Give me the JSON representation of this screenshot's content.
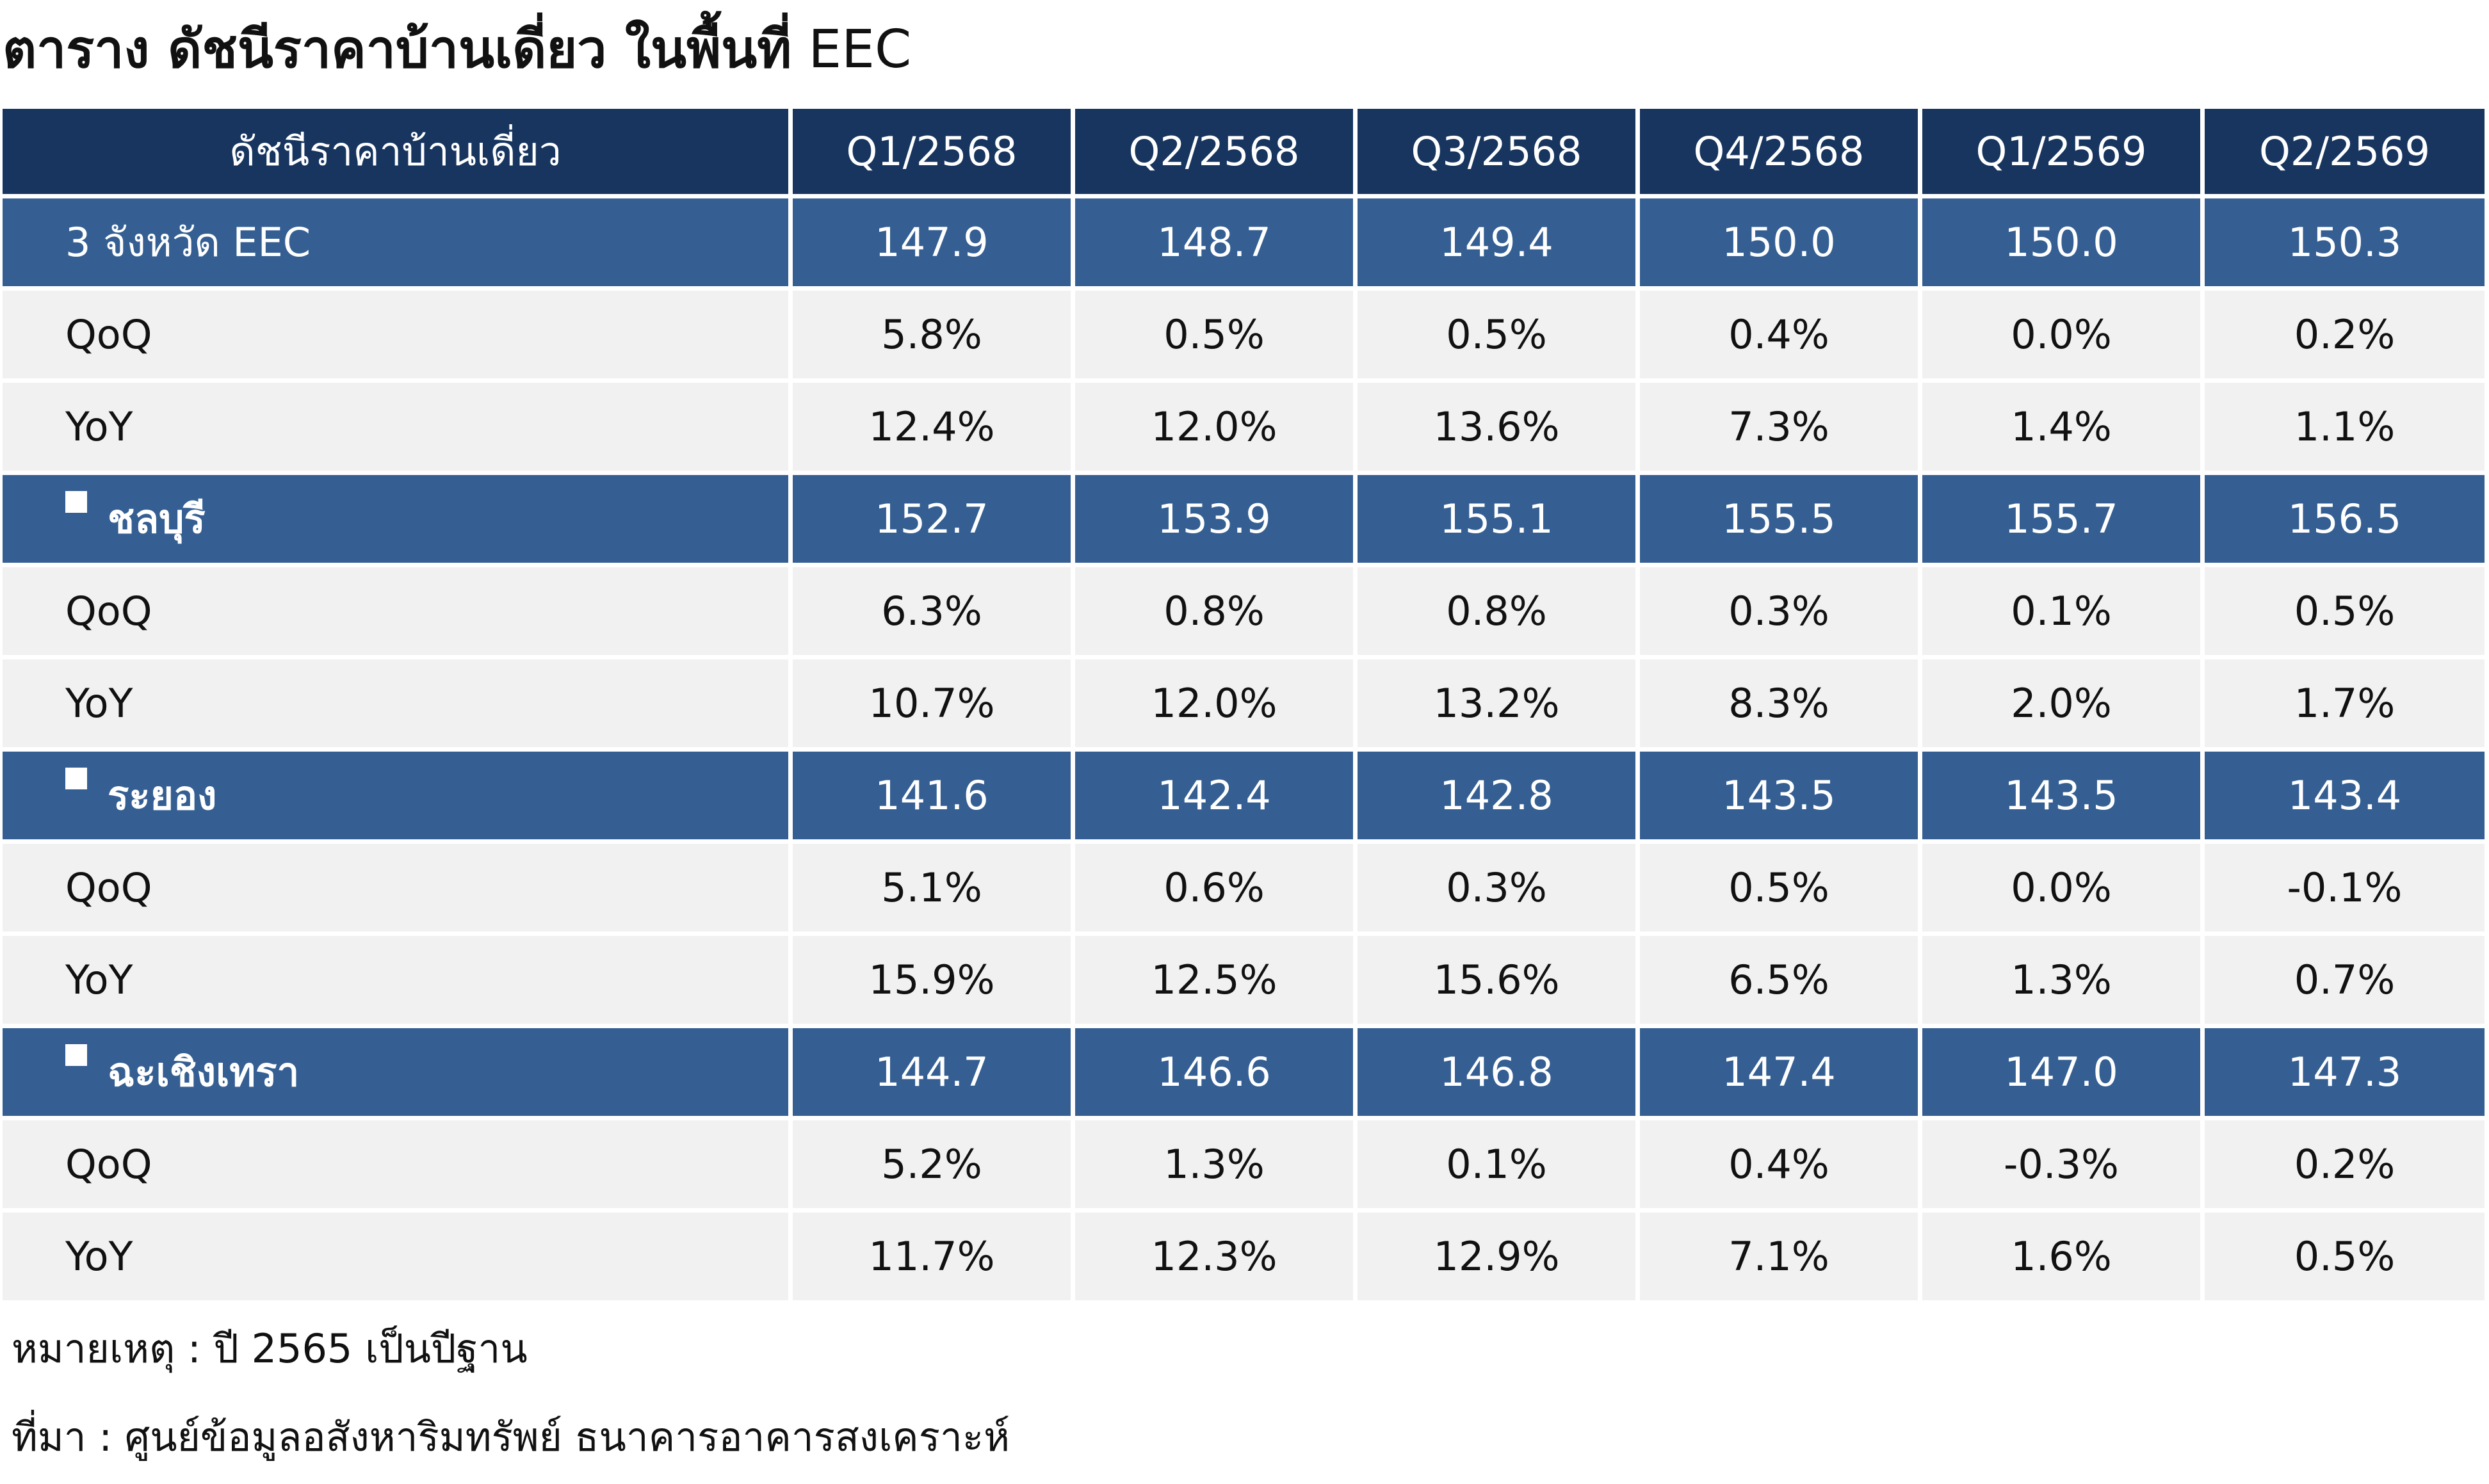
{
  "title": {
    "thai": "ตาราง ดัชนีราคาบ้านเดี่ยว ในพื้นที่",
    "latin": "EEC"
  },
  "table": {
    "header": [
      "ดัชนีราคาบ้านเดี่ยว",
      "Q1/2568",
      "Q2/2568",
      "Q3/2568",
      "Q4/2568",
      "Q1/2569",
      "Q2/2569"
    ],
    "groups": [
      {
        "name": "3 จังหวัด EEC",
        "bullet": false,
        "values": [
          "147.9",
          "148.7",
          "149.4",
          "150.0",
          "150.0",
          "150.3"
        ],
        "rows": [
          {
            "label": "QoQ",
            "values": [
              "5.8%",
              "0.5%",
              "0.5%",
              "0.4%",
              "0.0%",
              "0.2%"
            ]
          },
          {
            "label": "YoY",
            "values": [
              "12.4%",
              "12.0%",
              "13.6%",
              "7.3%",
              "1.4%",
              "1.1%"
            ]
          }
        ]
      },
      {
        "name": "ชลบุรี",
        "bullet": true,
        "values": [
          "152.7",
          "153.9",
          "155.1",
          "155.5",
          "155.7",
          "156.5"
        ],
        "rows": [
          {
            "label": "QoQ",
            "values": [
              "6.3%",
              "0.8%",
              "0.8%",
              "0.3%",
              "0.1%",
              "0.5%"
            ]
          },
          {
            "label": "YoY",
            "values": [
              "10.7%",
              "12.0%",
              "13.2%",
              "8.3%",
              "2.0%",
              "1.7%"
            ]
          }
        ]
      },
      {
        "name": "ระยอง",
        "bullet": true,
        "values": [
          "141.6",
          "142.4",
          "142.8",
          "143.5",
          "143.5",
          "143.4"
        ],
        "rows": [
          {
            "label": "QoQ",
            "values": [
              "5.1%",
              "0.6%",
              "0.3%",
              "0.5%",
              "0.0%",
              "-0.1%"
            ]
          },
          {
            "label": "YoY",
            "values": [
              "15.9%",
              "12.5%",
              "15.6%",
              "6.5%",
              "1.3%",
              "0.7%"
            ]
          }
        ]
      },
      {
        "name": "ฉะเชิงเทรา",
        "bullet": true,
        "values": [
          "144.7",
          "146.6",
          "146.8",
          "147.4",
          "147.0",
          "147.3"
        ],
        "rows": [
          {
            "label": "QoQ",
            "values": [
              "5.2%",
              "1.3%",
              "0.1%",
              "0.4%",
              "-0.3%",
              "0.2%"
            ]
          },
          {
            "label": "YoY",
            "values": [
              "11.7%",
              "12.3%",
              "12.9%",
              "7.1%",
              "1.6%",
              "0.5%"
            ]
          }
        ]
      }
    ]
  },
  "notes": {
    "remark": "หมายเหตุ : ปี 2565 เป็นปีฐาน",
    "source": "ที่มา : ศูนย์ข้อมูลอสังหาริมทรัพย์ ธนาคารอาคารสงเคราะห์"
  },
  "colors": {
    "header_bg": "#17355f",
    "group_bg": "#355f93",
    "sub_bg": "#f1f1f1",
    "negative": "#ff0000"
  }
}
